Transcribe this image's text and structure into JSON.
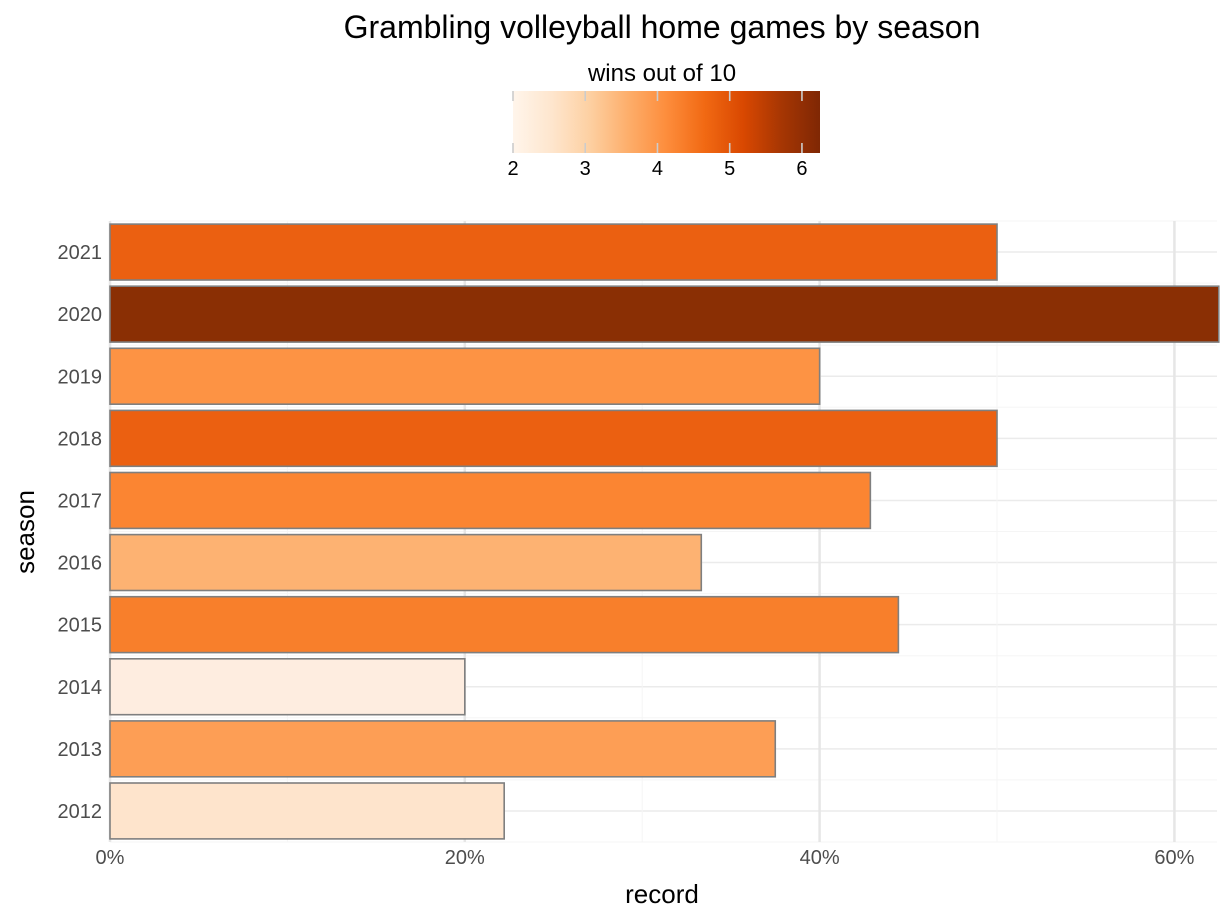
{
  "chart_data": {
    "type": "bar",
    "orientation": "horizontal",
    "title": "Grambling volleyball home games by season",
    "xlabel": "record",
    "ylabel": "season",
    "xlim": [
      0,
      0.624
    ],
    "x_ticks": [
      0,
      0.2,
      0.4,
      0.6
    ],
    "x_tick_labels": [
      "0%",
      "20%",
      "40%",
      "60%"
    ],
    "grid": true,
    "legend": {
      "title": "wins out of 10",
      "type": "colorbar",
      "position": "top",
      "range": [
        2,
        6.25
      ],
      "ticks": [
        2,
        3,
        4,
        5,
        6
      ],
      "tick_labels": [
        "2",
        "3",
        "4",
        "5",
        "6"
      ],
      "colors": [
        "#fff5eb",
        "#fee6ce",
        "#fdd0a2",
        "#fdae6b",
        "#fd8d3c",
        "#f16913",
        "#d94801",
        "#a63603",
        "#7f2704"
      ]
    },
    "categories": [
      "2021",
      "2020",
      "2019",
      "2018",
      "2017",
      "2016",
      "2015",
      "2014",
      "2013",
      "2012"
    ],
    "values": [
      0.5,
      0.625,
      0.4,
      0.5,
      0.4286,
      0.3333,
      0.4444,
      0.2,
      0.375,
      0.2222
    ],
    "fill_values": [
      5.0,
      6.25,
      4.0,
      5.0,
      4.29,
      3.33,
      4.44,
      2.0,
      3.75,
      2.22
    ],
    "bar_colors": [
      "#eb6011",
      "#8a2f04",
      "#fd9344",
      "#eb6011",
      "#fb8532",
      "#fdb272",
      "#f87f2b",
      "#feede0",
      "#fd9e55",
      "#fee4cc"
    ],
    "bar_outline_color": "#7f7f7f"
  }
}
